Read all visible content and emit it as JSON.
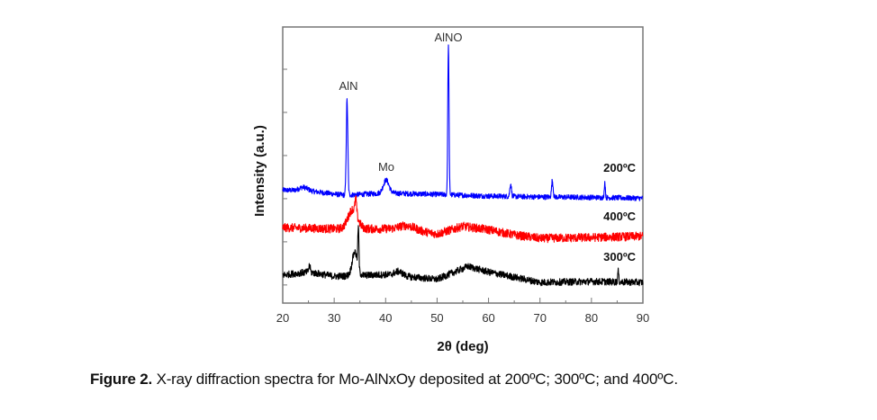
{
  "caption": {
    "label": "Figure 2.",
    "text": " X-ray diffraction spectra for Mo-AlNxOy deposited at 200ºC; 300ºC; and 400ºC."
  },
  "chart_data": {
    "type": "line",
    "title": "",
    "xlabel": "2θ (deg)",
    "ylabel": "Intensity (a.u.)",
    "xlim": [
      20,
      90
    ],
    "ylim": [
      0,
      6.4
    ],
    "xticks": [
      20,
      30,
      40,
      50,
      60,
      70,
      80,
      90
    ],
    "xtick_labels": [
      "20",
      "30",
      "40",
      "50",
      "60",
      "70",
      "80",
      "90"
    ],
    "yticks": [
      0.42,
      1.42,
      2.42,
      3.42,
      4.42,
      5.42,
      6.4
    ],
    "ytick_labels_shown": false,
    "grid": false,
    "legend": "inline-right",
    "series": [
      {
        "name": "200ºC",
        "color": "#0000ff",
        "baseline": [
          [
            20,
            2.62
          ],
          [
            25,
            2.6
          ],
          [
            32,
            2.5
          ],
          [
            40,
            2.55
          ],
          [
            50,
            2.52
          ],
          [
            60,
            2.48
          ],
          [
            70,
            2.46
          ],
          [
            80,
            2.45
          ],
          [
            90,
            2.43
          ]
        ],
        "peaks": [
          [
            24,
            0.08,
            0.8
          ],
          [
            32.5,
            2.2,
            0.15
          ],
          [
            40.1,
            0.3,
            0.55
          ],
          [
            52.2,
            3.45,
            0.12
          ],
          [
            64.3,
            0.3,
            0.15
          ],
          [
            72.4,
            0.38,
            0.15
          ],
          [
            82.6,
            0.36,
            0.1
          ]
        ],
        "noise": 0.06
      },
      {
        "name": "400ºC",
        "color": "#ff0000",
        "baseline": [
          [
            20,
            1.75
          ],
          [
            30,
            1.72
          ],
          [
            40,
            1.72
          ],
          [
            46,
            1.68
          ],
          [
            50,
            1.6
          ],
          [
            55,
            1.78
          ],
          [
            60,
            1.7
          ],
          [
            65,
            1.58
          ],
          [
            70,
            1.5
          ],
          [
            80,
            1.52
          ],
          [
            90,
            1.55
          ]
        ],
        "peaks": [
          [
            33.6,
            0.45,
            0.9
          ],
          [
            34.2,
            0.35,
            0.15
          ],
          [
            44,
            0.1,
            1.5
          ]
        ],
        "noise": 0.1
      },
      {
        "name": "300ºC",
        "color": "#000000",
        "baseline": [
          [
            20,
            0.65
          ],
          [
            25,
            0.72
          ],
          [
            30,
            0.62
          ],
          [
            40,
            0.66
          ],
          [
            50,
            0.55
          ],
          [
            56,
            0.85
          ],
          [
            60,
            0.72
          ],
          [
            65,
            0.6
          ],
          [
            70,
            0.48
          ],
          [
            80,
            0.5
          ],
          [
            90,
            0.48
          ]
        ],
        "peaks": [
          [
            34.0,
            0.55,
            0.5
          ],
          [
            34.7,
            0.95,
            0.1
          ],
          [
            25.2,
            0.15,
            0.15
          ],
          [
            42.5,
            0.1,
            0.8
          ],
          [
            85.2,
            0.25,
            0.1
          ]
        ],
        "noise": 0.08
      }
    ],
    "annotations": [
      {
        "text": "AlN",
        "x": 32.5
      },
      {
        "text": "AlNO",
        "x": 52.2
      },
      {
        "text": "Mo",
        "x": 40.1
      }
    ]
  }
}
